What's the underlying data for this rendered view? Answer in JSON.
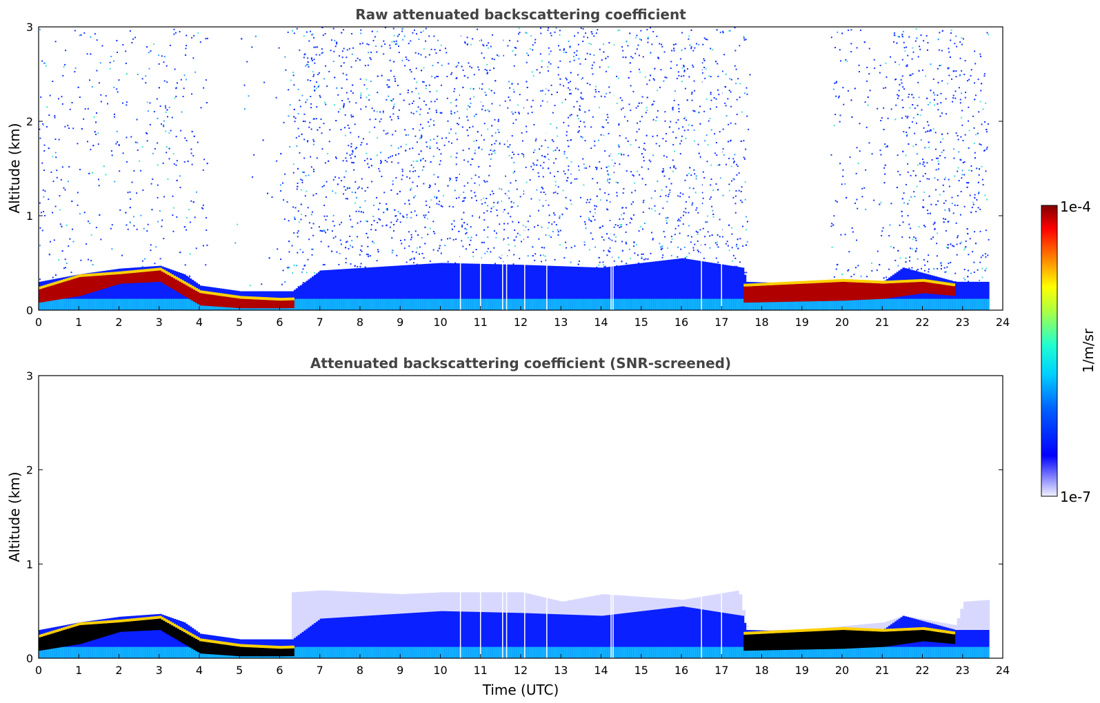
{
  "chart_data": [
    {
      "type": "heatmap",
      "title": "Raw attenuated backscattering coefficient",
      "xlabel": "",
      "ylabel": "Altitude (km)",
      "xlim": [
        0,
        24
      ],
      "ylim": [
        0,
        3
      ],
      "xticks": [
        "0",
        "1",
        "2",
        "3",
        "4",
        "5",
        "6",
        "7",
        "8",
        "9",
        "10",
        "11",
        "12",
        "13",
        "14",
        "15",
        "16",
        "17",
        "18",
        "19",
        "20",
        "21",
        "22",
        "23",
        "24"
      ],
      "yticks": [
        "0",
        "1",
        "2",
        "3"
      ],
      "data_end_hour": 23.65,
      "boundary_layer_top_km": [
        [
          0,
          0.3
        ],
        [
          1,
          0.38
        ],
        [
          2,
          0.44
        ],
        [
          3,
          0.47
        ],
        [
          3.6,
          0.38
        ],
        [
          4,
          0.26
        ],
        [
          5,
          0.2
        ],
        [
          6,
          0.2
        ],
        [
          6.3,
          0.2
        ],
        [
          7,
          0.42
        ],
        [
          10,
          0.5
        ],
        [
          12,
          0.48
        ],
        [
          14,
          0.45
        ],
        [
          16,
          0.55
        ],
        [
          17.5,
          0.45
        ],
        [
          17.6,
          0.3
        ],
        [
          19,
          0.28
        ],
        [
          20,
          0.28
        ],
        [
          21,
          0.3
        ],
        [
          21.5,
          0.45
        ],
        [
          22.8,
          0.3
        ],
        [
          23.65,
          0.3
        ]
      ],
      "high_signal_layers_km": [
        [
          0,
          0.08,
          0.22
        ],
        [
          1,
          0.15,
          0.35
        ],
        [
          2,
          0.28,
          0.38
        ],
        [
          3,
          0.3,
          0.42
        ],
        [
          4,
          0.05,
          0.18
        ],
        [
          5,
          0.02,
          0.12
        ],
        [
          6,
          0.02,
          0.1
        ],
        [
          17.6,
          0.08,
          0.25
        ],
        [
          20,
          0.1,
          0.3
        ],
        [
          21,
          0.12,
          0.28
        ],
        [
          22,
          0.18,
          0.3
        ],
        [
          22.8,
          0.15,
          0.25
        ]
      ],
      "data_gaps_hours": [
        10.5,
        11.0,
        11.55,
        11.65,
        12.1,
        12.65,
        14.25,
        14.3,
        16.5,
        17.0
      ],
      "noise_free_columns_hours": [
        [
          4.2,
          4.85
        ],
        [
          17.7,
          19.7
        ]
      ],
      "colorscale": [
        "#ffffff",
        "#0000ff",
        "#00a0ff",
        "#00ffc0",
        "#b0ff40",
        "#ffff00",
        "#ff8000",
        "#ff0000",
        "#800000"
      ]
    },
    {
      "type": "heatmap",
      "title": "Attenuated backscattering coefficient (SNR-screened)",
      "xlabel": "Time (UTC)",
      "ylabel": "Altitude (km)",
      "xlim": [
        0,
        24
      ],
      "ylim": [
        0,
        3
      ],
      "xticks": [
        "0",
        "1",
        "2",
        "3",
        "4",
        "5",
        "6",
        "7",
        "8",
        "9",
        "10",
        "11",
        "12",
        "13",
        "14",
        "15",
        "16",
        "17",
        "18",
        "19",
        "20",
        "21",
        "22",
        "23",
        "24"
      ],
      "yticks": [
        "0",
        "1",
        "2",
        "3"
      ],
      "screened_top_km": [
        [
          0,
          0.32
        ],
        [
          1,
          0.43
        ],
        [
          2,
          0.48
        ],
        [
          3,
          0.52
        ],
        [
          3.6,
          0.42
        ],
        [
          4,
          0.28
        ],
        [
          5,
          0.2
        ],
        [
          6,
          0.18
        ],
        [
          6.3,
          0.7
        ],
        [
          7,
          0.72
        ],
        [
          9,
          0.68
        ],
        [
          10,
          0.7
        ],
        [
          12,
          0.7
        ],
        [
          13,
          0.6
        ],
        [
          14,
          0.68
        ],
        [
          16,
          0.62
        ],
        [
          17.4,
          0.72
        ],
        [
          17.6,
          0.3
        ],
        [
          19,
          0.3
        ],
        [
          20,
          0.34
        ],
        [
          21,
          0.38
        ],
        [
          21.5,
          0.45
        ],
        [
          22.8,
          0.35
        ],
        [
          23,
          0.6
        ],
        [
          23.65,
          0.62
        ]
      ],
      "saturated_color": "#000000"
    }
  ],
  "colorbar": {
    "max_label": "1e-4",
    "min_label": "1e-7",
    "unit_label": "1/m/sr"
  }
}
